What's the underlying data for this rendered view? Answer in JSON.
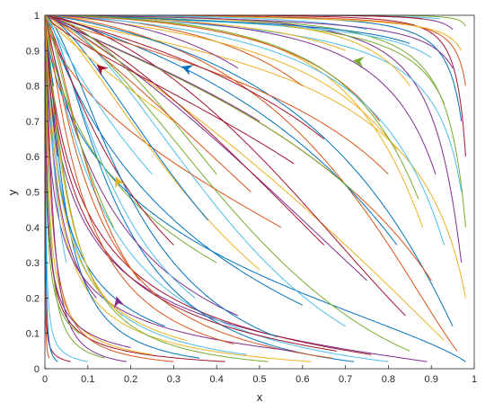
{
  "chart_data": {
    "type": "line",
    "title": "",
    "xlabel": "x",
    "ylabel": "y",
    "xlim": [
      0,
      1
    ],
    "ylim": [
      0,
      1
    ],
    "xticks": [
      0,
      0.1,
      0.2,
      0.3,
      0.4,
      0.5,
      0.6,
      0.7,
      0.8,
      0.9,
      1
    ],
    "yticks": [
      0,
      0.1,
      0.2,
      0.3,
      0.4,
      0.5,
      0.6,
      0.7,
      0.8,
      0.9,
      1
    ],
    "xtick_labels": [
      "0",
      "0.1",
      "0.2",
      "0.3",
      "0.4",
      "0.5",
      "0.6",
      "0.7",
      "0.8",
      "0.9",
      "1"
    ],
    "ytick_labels": [
      "0",
      "0.1",
      "0.2",
      "0.3",
      "0.4",
      "0.5",
      "0.6",
      "0.7",
      "0.8",
      "0.9",
      "1"
    ],
    "grid": false,
    "box": true,
    "description_of_marks": "phase-portrait trajectories converging to the point (0, 1)",
    "sink": [
      0,
      1
    ],
    "trajectory_starts": [
      [
        0.98,
        0.02
      ],
      [
        0.96,
        0.05
      ],
      [
        0.93,
        0.08
      ],
      [
        0.89,
        0.02
      ],
      [
        0.85,
        0.05
      ],
      [
        0.8,
        0.02
      ],
      [
        0.76,
        0.04
      ],
      [
        0.72,
        0.02
      ],
      [
        0.67,
        0.03
      ],
      [
        0.62,
        0.02
      ],
      [
        0.58,
        0.05
      ],
      [
        0.52,
        0.02
      ],
      [
        0.47,
        0.04
      ],
      [
        0.42,
        0.02
      ],
      [
        0.36,
        0.03
      ],
      [
        0.3,
        0.02
      ],
      [
        0.25,
        0.04
      ],
      [
        0.19,
        0.02
      ],
      [
        0.14,
        0.03
      ],
      [
        0.1,
        0.02
      ],
      [
        0.06,
        0.02
      ],
      [
        0.03,
        0.02
      ],
      [
        0.01,
        0.03
      ],
      [
        0.98,
        0.2
      ],
      [
        0.97,
        0.3
      ],
      [
        0.98,
        0.4
      ],
      [
        0.97,
        0.5
      ],
      [
        0.98,
        0.6
      ],
      [
        0.97,
        0.7
      ],
      [
        0.98,
        0.8
      ],
      [
        0.97,
        0.9
      ],
      [
        0.95,
        0.96
      ],
      [
        0.98,
        0.97
      ],
      [
        0.92,
        0.99
      ],
      [
        0.88,
        0.99
      ],
      [
        0.95,
        0.12
      ],
      [
        0.9,
        0.25
      ],
      [
        0.88,
        0.4
      ],
      [
        0.91,
        0.55
      ],
      [
        0.93,
        0.75
      ],
      [
        0.9,
        0.88
      ],
      [
        0.84,
        0.15
      ],
      [
        0.82,
        0.35
      ],
      [
        0.8,
        0.55
      ],
      [
        0.85,
        0.8
      ],
      [
        0.75,
        0.25
      ],
      [
        0.72,
        0.5
      ],
      [
        0.7,
        0.12
      ],
      [
        0.65,
        0.35
      ],
      [
        0.6,
        0.18
      ],
      [
        0.55,
        0.4
      ],
      [
        0.5,
        0.28
      ],
      [
        0.45,
        0.15
      ],
      [
        0.4,
        0.3
      ],
      [
        0.35,
        0.2
      ],
      [
        0.3,
        0.35
      ],
      [
        0.28,
        0.12
      ],
      [
        0.22,
        0.25
      ],
      [
        0.18,
        0.15
      ],
      [
        0.12,
        0.2
      ],
      [
        0.08,
        0.1
      ],
      [
        0.05,
        0.3
      ],
      [
        0.03,
        0.6
      ],
      [
        0.02,
        0.8
      ],
      [
        0.6,
        0.8
      ],
      [
        0.7,
        0.9
      ],
      [
        0.5,
        0.7
      ],
      [
        0.4,
        0.55
      ],
      [
        0.75,
        0.96
      ],
      [
        0.65,
        0.65
      ],
      [
        0.85,
        0.92
      ],
      [
        0.78,
        0.7
      ],
      [
        0.82,
        0.62
      ],
      [
        0.95,
        0.85
      ],
      [
        0.87,
        0.48
      ],
      [
        0.93,
        0.35
      ],
      [
        0.68,
        0.05
      ],
      [
        0.54,
        0.09
      ],
      [
        0.44,
        0.07
      ],
      [
        0.33,
        0.08
      ],
      [
        0.2,
        0.06
      ],
      [
        0.16,
        0.4
      ],
      [
        0.25,
        0.55
      ],
      [
        0.58,
        0.58
      ],
      [
        0.38,
        0.42
      ],
      [
        0.48,
        0.5
      ],
      [
        0.3,
        0.7
      ],
      [
        0.45,
        0.85
      ]
    ],
    "arrows": [
      [
        0.13,
        0.85
      ],
      [
        0.33,
        0.85
      ],
      [
        0.73,
        0.87
      ],
      [
        0.17,
        0.53
      ],
      [
        0.17,
        0.19
      ]
    ],
    "arrow_colors": [
      "#A2142F",
      "#0072BD",
      "#77AC30",
      "#EDB120",
      "#7E2F8E"
    ]
  },
  "colors": [
    "#0072BD",
    "#D95319",
    "#EDB120",
    "#7E2F8E",
    "#77AC30",
    "#4DBEEE",
    "#A2142F"
  ]
}
